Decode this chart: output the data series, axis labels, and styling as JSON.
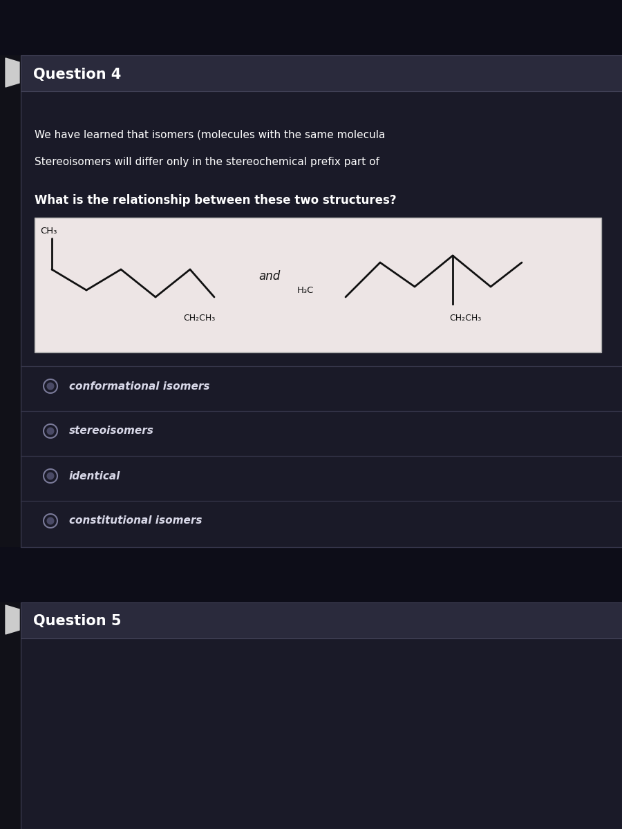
{
  "bg_outer": "#111118",
  "bg_content": "#1a1a28",
  "bg_header": "#252535",
  "bg_mol": "#ede5e5",
  "text_white": "#ffffff",
  "text_dark": "#111111",
  "text_option": "#d8d8e8",
  "separator": "#35354a",
  "radio_outer_fill": "#1a1a28",
  "radio_outer_edge": "#7a7a99",
  "radio_inner_fill": "#4a4a66",
  "q4_title": "Question 4",
  "q5_title": "Question 5",
  "line1": "We have learned that isomers (molecules with the same molecula",
  "line2": "Stereoisomers will differ only in the stereochemical prefix part of",
  "question": "What is the relationship between these two structures?",
  "ch3_label": "CH₃",
  "ch2ch3_label1": "CH₂CH₃",
  "h3c_label": "H₃C",
  "ch2ch3_label2": "CH₂CH₃",
  "and_label": "and",
  "options": [
    "conformational isomers",
    "stereoisomers",
    "identical",
    "constitutional isomers"
  ]
}
